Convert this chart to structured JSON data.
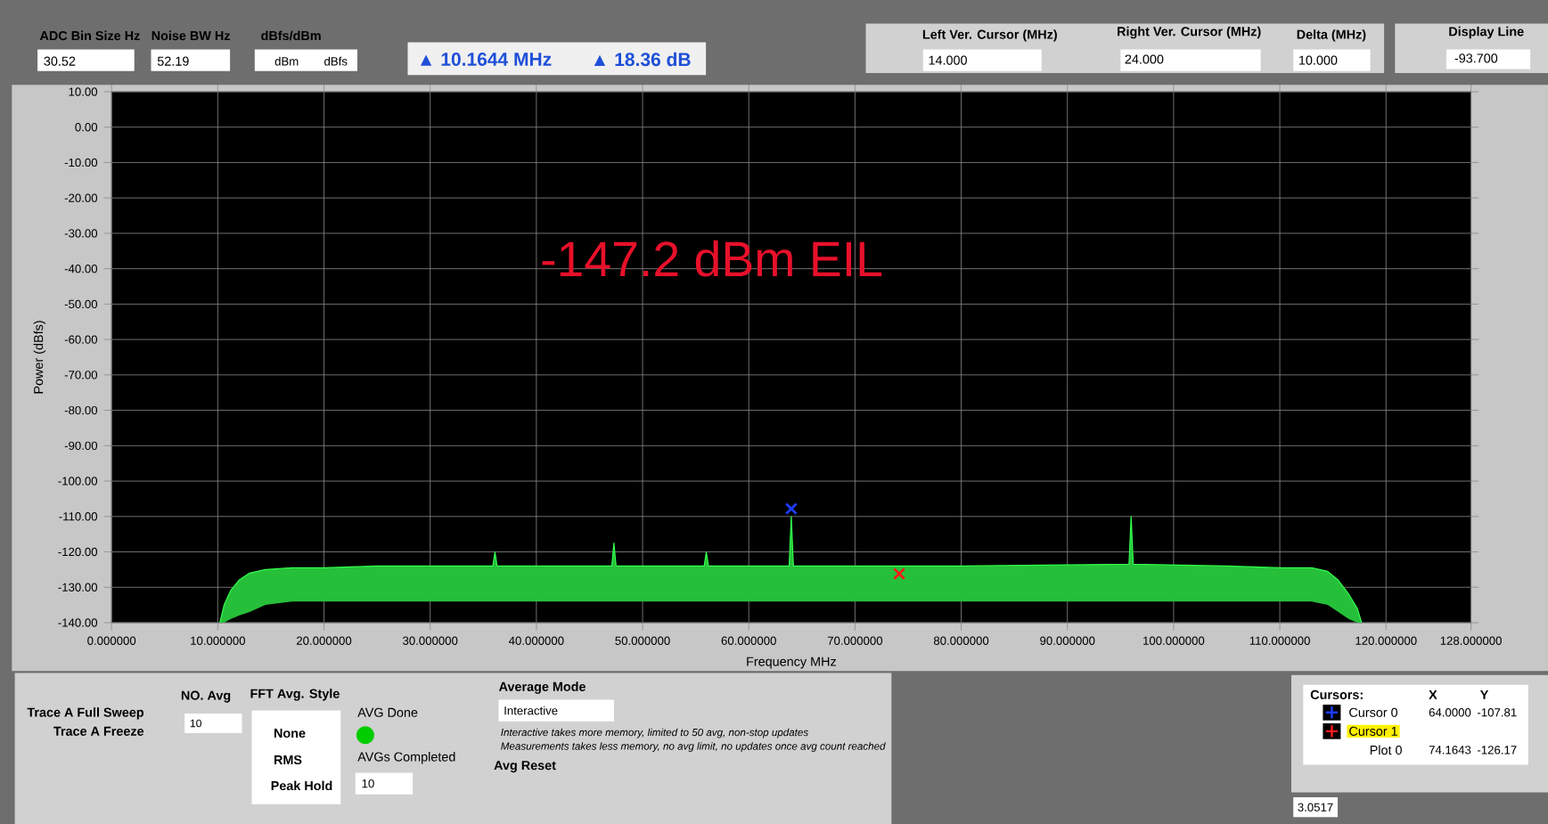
{
  "chart_data": {
    "type": "line",
    "xlabel": "Frequency MHz",
    "ylabel": "Power (dBfs)",
    "xlim": [
      0,
      128
    ],
    "ylim": [
      -140,
      10
    ],
    "xticks": [
      {
        "value": 0,
        "label": "0.000000"
      },
      {
        "value": 10,
        "label": "10.000000"
      },
      {
        "value": 20,
        "label": "20.000000"
      },
      {
        "value": 30,
        "label": "30.000000"
      },
      {
        "value": 40,
        "label": "40.000000"
      },
      {
        "value": 50,
        "label": "50.000000"
      },
      {
        "value": 60,
        "label": "60.000000"
      },
      {
        "value": 70,
        "label": "70.000000"
      },
      {
        "value": 80,
        "label": "80.000000"
      },
      {
        "value": 90,
        "label": "90.000000"
      },
      {
        "value": 100,
        "label": "100.000000"
      },
      {
        "value": 110,
        "label": "110.000000"
      },
      {
        "value": 120,
        "label": "120.000000"
      },
      {
        "value": 128,
        "label": "128.000000"
      }
    ],
    "yticks": [
      {
        "value": 10,
        "label": "10.00"
      },
      {
        "value": 0,
        "label": "0.00"
      },
      {
        "value": -10,
        "label": "-10.00"
      },
      {
        "value": -20,
        "label": "-20.00"
      },
      {
        "value": -30,
        "label": "-30.00"
      },
      {
        "value": -40,
        "label": "-40.00"
      },
      {
        "value": -50,
        "label": "-50.00"
      },
      {
        "value": -60,
        "label": "-60.00"
      },
      {
        "value": -70,
        "label": "-70.00"
      },
      {
        "value": -80,
        "label": "-80.00"
      },
      {
        "value": -90,
        "label": "-90.00"
      },
      {
        "value": -100,
        "label": "-100.00"
      },
      {
        "value": -110,
        "label": "-110.00"
      },
      {
        "value": -120,
        "label": "-120.00"
      },
      {
        "value": -130,
        "label": "-130.00"
      },
      {
        "value": -140,
        "label": "-140.00"
      }
    ],
    "grid": true,
    "legend": "bottom right",
    "series": [
      {
        "color": "#33ff4d",
        "x": [
          10.2,
          10.6,
          11.2,
          12,
          13,
          14.5,
          17,
          20,
          25,
          30,
          35.9,
          36.1,
          36.3,
          47.1,
          47.3,
          47.5,
          55.8,
          56,
          56.2,
          63.8,
          64,
          64.2,
          70,
          80,
          95.8,
          96,
          96.2,
          105,
          110,
          113,
          114.5,
          115.5,
          116.5,
          117.3,
          117.7
        ],
        "values": [
          -140,
          -135,
          -131,
          -128,
          -126,
          -125,
          -124.5,
          -124.5,
          -124,
          -124,
          -124,
          -120,
          -124,
          -124,
          -117.5,
          -124,
          -124,
          -120,
          -124,
          -124,
          -110,
          -124,
          -124,
          -124,
          -123.5,
          -110,
          -123.5,
          -124,
          -124.5,
          -124.5,
          -125.5,
          -128,
          -132,
          -136,
          -140
        ],
        "lower": [
          -140,
          -140,
          -139,
          -138,
          -137,
          -135,
          -134,
          -134,
          -134,
          -134,
          -134,
          -134,
          -134,
          -134,
          -134,
          -134,
          -134,
          -134,
          -134,
          -134,
          -134,
          -134,
          -134,
          -134,
          -134,
          -134,
          -134,
          -134,
          -134,
          -134,
          -135,
          -137,
          -139,
          -140,
          -140
        ],
        "upper": [
          -140,
          -135,
          -131,
          -128,
          -126,
          -125,
          -124.5,
          -124.5,
          -124,
          -124,
          -124,
          -120,
          -124,
          -124,
          -117.5,
          -124,
          -124,
          -120,
          -124,
          -124,
          -110,
          -124,
          -124,
          -124,
          -123.5,
          -110,
          -123.5,
          -124,
          -124.5,
          -124.5,
          -125.5,
          -128,
          -132,
          -136,
          -140
        ]
      },
      {
        "type": "scatter",
        "name": "Cursor 0",
        "color": "#1a3cff",
        "marker": "cross",
        "x": [
          64
        ],
        "values": [
          -107.81
        ]
      },
      {
        "type": "scatter",
        "name": "Cursor 1",
        "color": "#ff1a1a",
        "marker": "cross",
        "x": [
          74.1643
        ],
        "values": [
          -126.17
        ]
      }
    ],
    "annotations": [
      "ADC Bin Size Hz",
      "30.52",
      "Noise BW Hz",
      "52.19",
      "dBfs/dBm",
      "dBm",
      "dBfs",
      "▲ 10.1644 MHz",
      "▲ 18.36 dB",
      "Left Ver. Cursor (MHz)",
      "14.000",
      "Right Ver. Cursor (MHz)",
      "24.000",
      "Delta  (MHz)",
      "10.000",
      "Display Line",
      "-93.700",
      "-147.2 dBm EIL",
      "Trace A Full Sweep",
      "Trace A Freeze",
      "NO. Avg",
      "10",
      "FFT Avg. Style",
      "None",
      "RMS",
      "Peak Hold",
      "AVG Done",
      "AVGs Completed",
      "10",
      "Average Mode",
      "Interactive",
      "Interactive takes more memory, limited to 50 avg, non-stop updates",
      "Measurements takes less memory, no avg limit, no updates once avg count reached",
      "Avg Reset",
      "Cursors:",
      "X",
      "Y",
      "64.0000",
      "-107.81",
      "Plot 0",
      "74.1643",
      "-126.17",
      "3.0517"
    ]
  }
}
